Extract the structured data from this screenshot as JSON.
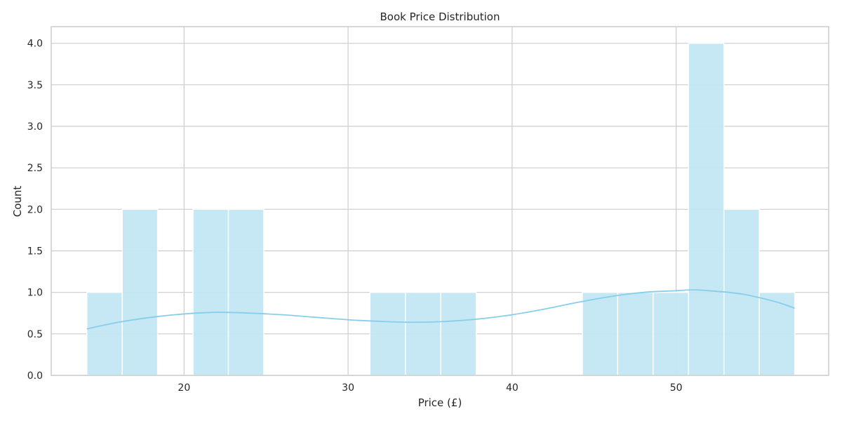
{
  "chart_data": {
    "type": "bar",
    "title": "Book Price Distribution",
    "xlabel": "Price (£)",
    "ylabel": "Count",
    "xlim": [
      11.9,
      59.3
    ],
    "ylim": [
      0,
      4.2
    ],
    "xticks": [
      20,
      30,
      40,
      50
    ],
    "yticks": [
      0.0,
      0.5,
      1.0,
      1.5,
      2.0,
      2.5,
      3.0,
      3.5,
      4.0
    ],
    "grid": true,
    "bin_start": 14.07,
    "bin_width": 2.158,
    "counts": [
      1,
      2,
      0,
      2,
      2,
      0,
      0,
      0,
      1,
      1,
      1,
      0,
      0,
      0,
      1,
      1,
      1,
      4,
      2,
      1
    ],
    "kde": {
      "x": [
        14.07,
        16,
        18,
        20,
        22,
        24,
        26,
        28,
        30,
        32,
        34,
        36,
        38,
        40,
        42,
        44,
        46,
        48,
        50,
        51,
        52,
        54,
        56,
        57.23
      ],
      "y": [
        0.56,
        0.64,
        0.7,
        0.74,
        0.76,
        0.75,
        0.73,
        0.7,
        0.67,
        0.65,
        0.64,
        0.65,
        0.68,
        0.73,
        0.8,
        0.88,
        0.95,
        1.0,
        1.02,
        1.03,
        1.02,
        0.98,
        0.89,
        0.81
      ]
    },
    "colors": {
      "bar_fill": "#c3e6f3",
      "bar_edge": "#ffffff",
      "kde_line": "#87ceeb",
      "grid": "#cccccc",
      "spine": "#cccccc"
    }
  }
}
